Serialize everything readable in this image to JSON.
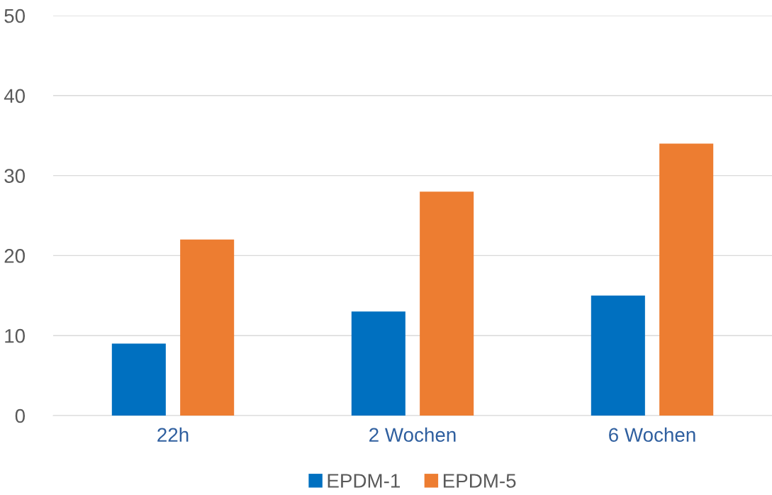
{
  "chart_data": {
    "type": "bar",
    "categories": [
      "22h",
      "2 Wochen",
      "6 Wochen"
    ],
    "series": [
      {
        "name": "EPDM-1",
        "color": "#0070c0",
        "values": [
          9,
          13,
          15
        ]
      },
      {
        "name": "EPDM-5",
        "color": "#ed7d31",
        "values": [
          22,
          28,
          34
        ]
      }
    ],
    "ylim": [
      0,
      50
    ],
    "yticks": [
      0,
      10,
      20,
      30,
      40,
      50
    ],
    "grid": "y",
    "legend": "bottom"
  }
}
